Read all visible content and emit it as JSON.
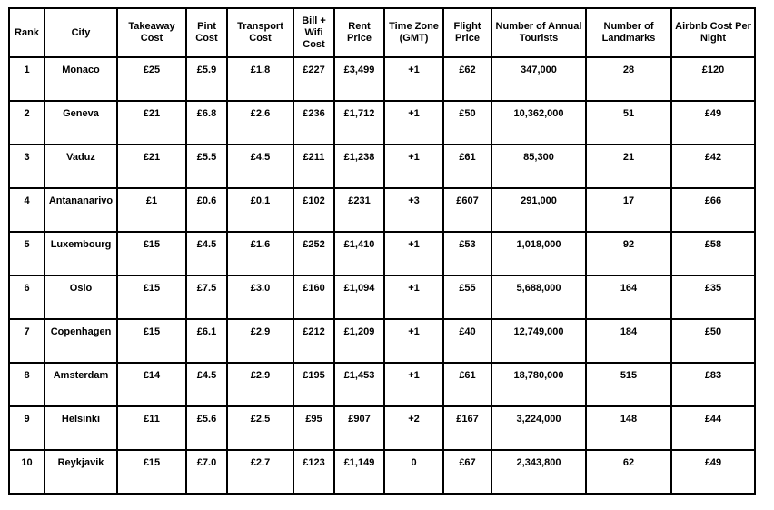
{
  "colors": {
    "border": "#000000",
    "text": "#000000",
    "background": "#ffffff"
  },
  "chart_data": {
    "type": "table",
    "columns": [
      "Rank",
      "City",
      "Takeaway Cost",
      "Pint Cost",
      "Transport Cost",
      "Bill + Wifi Cost",
      "Rent Price",
      "Time Zone (GMT)",
      "Flight Price",
      "Number of Annual Tourists",
      "Number of Landmarks",
      "Airbnb Cost Per Night"
    ],
    "rows": [
      [
        "1",
        "Monaco",
        "£25",
        "£5.9",
        "£1.8",
        "£227",
        "£3,499",
        "+1",
        "£62",
        "347,000",
        "28",
        "£120"
      ],
      [
        "2",
        "Geneva",
        "£21",
        "£6.8",
        "£2.6",
        "£236",
        "£1,712",
        "+1",
        "£50",
        "10,362,000",
        "51",
        "£49"
      ],
      [
        "3",
        "Vaduz",
        "£21",
        "£5.5",
        "£4.5",
        "£211",
        "£1,238",
        "+1",
        "£61",
        "85,300",
        "21",
        "£42"
      ],
      [
        "4",
        "Antananarivo",
        "£1",
        "£0.6",
        "£0.1",
        "£102",
        "£231",
        "+3",
        "£607",
        "291,000",
        "17",
        "£66"
      ],
      [
        "5",
        "Luxembourg",
        "£15",
        "£4.5",
        "£1.6",
        "£252",
        "£1,410",
        "+1",
        "£53",
        "1,018,000",
        "92",
        "£58"
      ],
      [
        "6",
        "Oslo",
        "£15",
        "£7.5",
        "£3.0",
        "£160",
        "£1,094",
        "+1",
        "£55",
        "5,688,000",
        "164",
        "£35"
      ],
      [
        "7",
        "Copenhagen",
        "£15",
        "£6.1",
        "£2.9",
        "£212",
        "£1,209",
        "+1",
        "£40",
        "12,749,000",
        "184",
        "£50"
      ],
      [
        "8",
        "Amsterdam",
        "£14",
        "£4.5",
        "£2.9",
        "£195",
        "£1,453",
        "+1",
        "£61",
        "18,780,000",
        "515",
        "£83"
      ],
      [
        "9",
        "Helsinki",
        "£11",
        "£5.6",
        "£2.5",
        "£95",
        "£907",
        "+2",
        "£167",
        "3,224,000",
        "148",
        "£44"
      ],
      [
        "10",
        "Reykjavik",
        "£15",
        "£7.0",
        "£2.7",
        "£123",
        "£1,149",
        "0",
        "£67",
        "2,343,800",
        "62",
        "£49"
      ]
    ]
  }
}
